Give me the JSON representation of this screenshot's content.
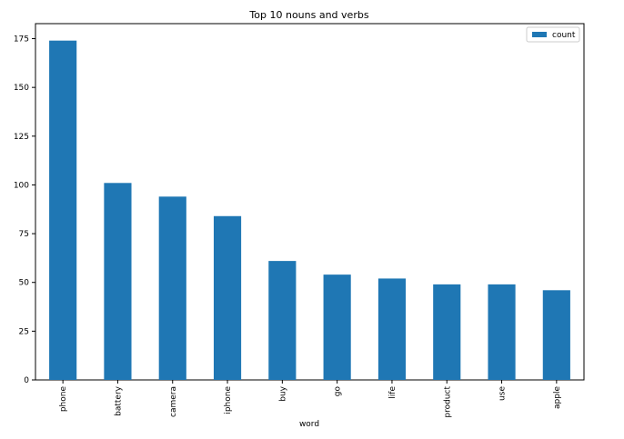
{
  "chart_data": {
    "type": "bar",
    "title": "Top 10 nouns and verbs",
    "xlabel": "word",
    "ylabel": "",
    "categories": [
      "phone",
      "battery",
      "camera",
      "iphone",
      "buy",
      "go",
      "life",
      "product",
      "use",
      "apple"
    ],
    "series": [
      {
        "name": "count",
        "values": [
          174,
          101,
          94,
          84,
          61,
          54,
          52,
          49,
          49,
          46
        ]
      }
    ],
    "ylim": [
      0,
      182.7
    ],
    "yticks": [
      0,
      25,
      50,
      75,
      100,
      125,
      150,
      175
    ],
    "grid": false,
    "legend_position": "top-right",
    "bar_color": "#1f77b4"
  }
}
